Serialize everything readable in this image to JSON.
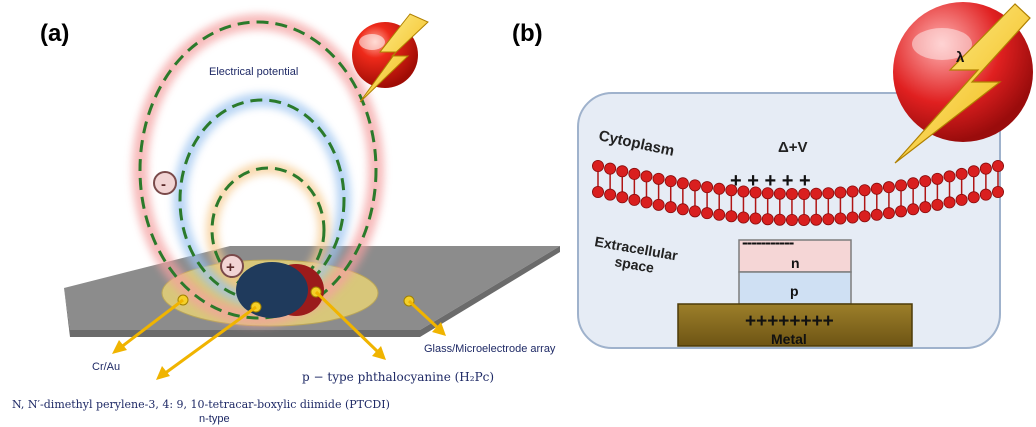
{
  "panel_a": {
    "label": "(a)",
    "electrical_potential": "Electrical potential",
    "minus_sign": "-",
    "plus_sign": "+",
    "cr_au": "Cr/Au",
    "glass_array": "Glass/Microelectrode array",
    "h2pc": "p − type phthalocyanine (H₂Pc)",
    "ptcdi": "N, N′-dimethyl perylene-3, 4: 9, 10-tetracar-boxylic diimide (PTCDI)",
    "ntype": "n-type",
    "colors": {
      "substrate": "#8c8c8c",
      "disc": "#d8c77a",
      "pc": "#1f3a5c",
      "ptcdi": "#9b1b1b",
      "arrows": "#f0b400"
    }
  },
  "panel_b": {
    "label": "(b)",
    "cytoplasm": "Cytoplasm",
    "delta_v": "Δ+V",
    "plus_row": "+ + + + +",
    "extracellular_1": "Extracellular",
    "extracellular_2": "space",
    "minus_row": "-----------",
    "n_label": "n",
    "p_label": "p",
    "metal_plus": "++++++++",
    "metal": "Metal",
    "lambda": "λ",
    "colors": {
      "cell": "#e6ecf5",
      "membrane": "#d91f1f",
      "n_layer": "#f5d6d6",
      "p_layer": "#cfe0f3",
      "metal": "#8a6e1e"
    }
  }
}
